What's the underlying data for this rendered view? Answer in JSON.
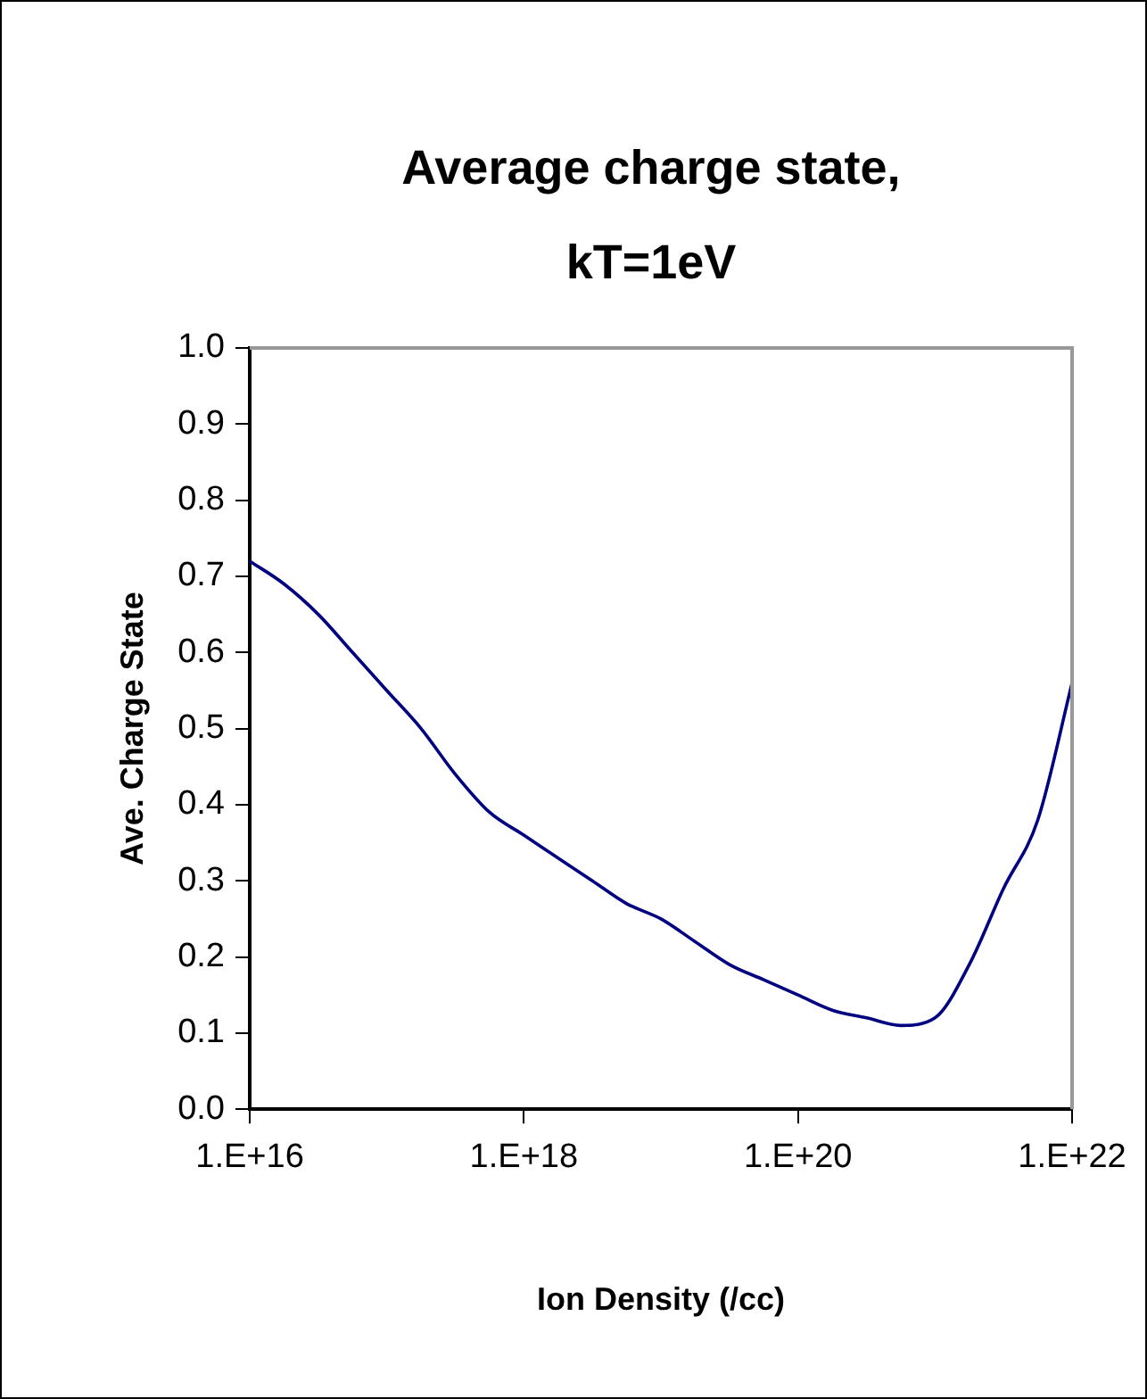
{
  "chart_data": {
    "type": "line",
    "title": "Average charge state, kT=1eV",
    "xlabel": "Ion Density (/cc)",
    "ylabel": "Ave. Charge State",
    "categories": [
      "1.E+16",
      null,
      null,
      null,
      null,
      null,
      null,
      null,
      "1.E+18",
      null,
      null,
      null,
      null,
      null,
      null,
      null,
      "1.E+20",
      null,
      null,
      null,
      null,
      null,
      null,
      null,
      "1.E+22"
    ],
    "series": [
      {
        "color": "#000080",
        "values": [
          0.72,
          0.69,
          0.65,
          0.6,
          0.55,
          0.5,
          0.44,
          0.39,
          0.36,
          0.33,
          0.3,
          0.27,
          0.25,
          0.22,
          0.19,
          0.17,
          0.15,
          0.13,
          0.12,
          0.11,
          0.12,
          0.19,
          0.29,
          0.38,
          0.56
        ]
      }
    ],
    "ylim": [
      0,
      1
    ],
    "yticks": [
      {
        "value": 0,
        "label": "0.0"
      },
      {
        "value": 0.1,
        "label": "0.1"
      },
      {
        "value": 0.2,
        "label": "0.2"
      },
      {
        "value": 0.3,
        "label": "0.3"
      },
      {
        "value": 0.4,
        "label": "0.4"
      },
      {
        "value": 0.5,
        "label": "0.5"
      },
      {
        "value": 0.6,
        "label": "0.6"
      },
      {
        "value": 0.7,
        "label": "0.7"
      },
      {
        "value": 0.8,
        "label": "0.8"
      },
      {
        "value": 0.9,
        "label": "0.9"
      },
      {
        "value": 1,
        "label": "1.0"
      }
    ],
    "grid": false,
    "legend": false,
    "marker": "none",
    "line_style": "solid"
  }
}
